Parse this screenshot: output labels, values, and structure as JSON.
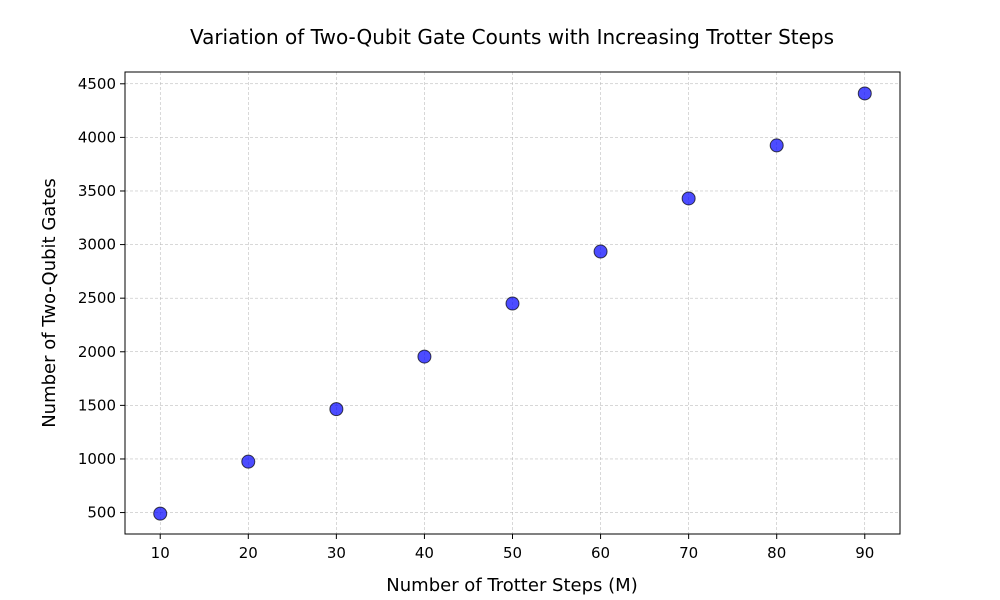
{
  "chart_data": {
    "type": "scatter",
    "title": "Variation of Two-Qubit Gate Counts with Increasing Trotter Steps",
    "xlabel": "Number of Trotter Steps (M)",
    "ylabel": "Number of Two-Qubit Gates",
    "x": [
      10,
      20,
      30,
      40,
      50,
      60,
      70,
      80,
      90
    ],
    "y": [
      490,
      975,
      1465,
      1955,
      2450,
      2935,
      3430,
      3925,
      4410
    ],
    "xlim": [
      6,
      94
    ],
    "ylim": [
      300,
      4610
    ],
    "xticks": [
      10,
      20,
      30,
      40,
      50,
      60,
      70,
      80,
      90
    ],
    "yticks": [
      500,
      1000,
      1500,
      2000,
      2500,
      3000,
      3500,
      4000,
      4500
    ],
    "grid": true,
    "grid_style": "dashed",
    "marker_color": "#0000ff",
    "marker_edge_color": "#000000",
    "marker_alpha": 0.7,
    "legend": false
  }
}
